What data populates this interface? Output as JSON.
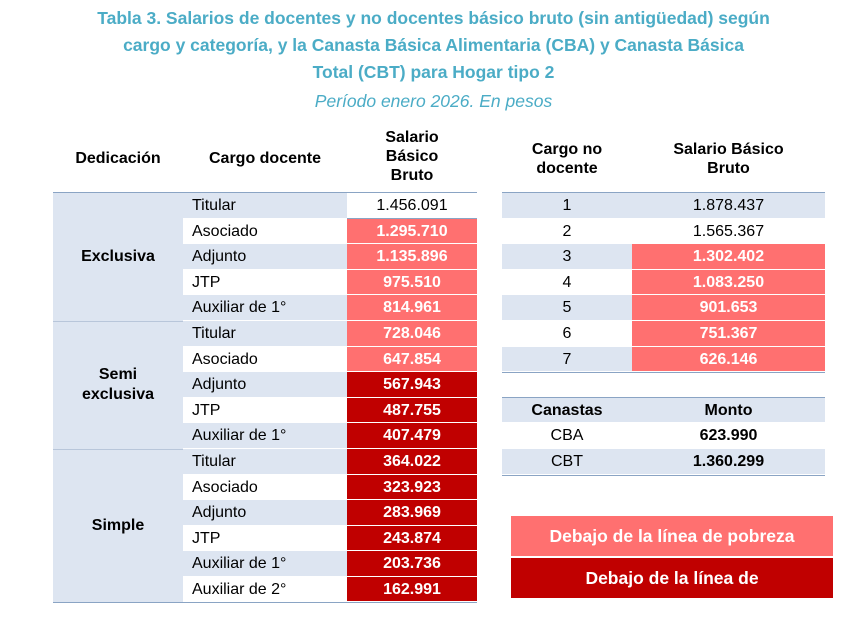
{
  "title": {
    "line1": "Tabla 3. Salarios de docentes y no docentes básico bruto (sin antigüedad) según",
    "line2": "cargo y categoría, y la Canasta Básica Alimentaria (CBA) y Canasta Básica",
    "line3": "Total (CBT) para Hogar tipo 2",
    "subtitle": "Período enero 2026. En pesos"
  },
  "docentes": {
    "headers": {
      "dedicacion": "Dedicación",
      "cargo": "Cargo docente",
      "salario_l1": "Salario",
      "salario_l2": "Básico",
      "salario_l3": "Bruto"
    },
    "groups": [
      {
        "label": "Exclusiva",
        "rows": [
          {
            "cargo": "Titular",
            "salario": "1.456.091",
            "status": "none"
          },
          {
            "cargo": "Asociado",
            "salario": "1.295.710",
            "status": "pobreza"
          },
          {
            "cargo": "Adjunto",
            "salario": "1.135.896",
            "status": "pobreza"
          },
          {
            "cargo": "JTP",
            "salario": "975.510",
            "status": "pobreza"
          },
          {
            "cargo": "Auxiliar de 1°",
            "salario": "814.961",
            "status": "pobreza"
          }
        ]
      },
      {
        "label_l1": "Semi",
        "label_l2": "exclusiva",
        "rows": [
          {
            "cargo": "Titular",
            "salario": "728.046",
            "status": "pobreza"
          },
          {
            "cargo": "Asociado",
            "salario": "647.854",
            "status": "pobreza"
          },
          {
            "cargo": "Adjunto",
            "salario": "567.943",
            "status": "indigencia"
          },
          {
            "cargo": "JTP",
            "salario": "487.755",
            "status": "indigencia"
          },
          {
            "cargo": "Auxiliar de 1°",
            "salario": "407.479",
            "status": "indigencia"
          }
        ]
      },
      {
        "label": "Simple",
        "rows": [
          {
            "cargo": "Titular",
            "salario": "364.022",
            "status": "indigencia"
          },
          {
            "cargo": "Asociado",
            "salario": "323.923",
            "status": "indigencia"
          },
          {
            "cargo": "Adjunto",
            "salario": "283.969",
            "status": "indigencia"
          },
          {
            "cargo": "JTP",
            "salario": "243.874",
            "status": "indigencia"
          },
          {
            "cargo": "Auxiliar de 1°",
            "salario": "203.736",
            "status": "indigencia"
          },
          {
            "cargo": "Auxiliar de 2°",
            "salario": "162.991",
            "status": "indigencia"
          }
        ]
      }
    ]
  },
  "no_docentes": {
    "headers": {
      "cargo_l1": "Cargo no",
      "cargo_l2": "docente",
      "salario_l1": "Salario Básico",
      "salario_l2": "Bruto"
    },
    "rows": [
      {
        "cargo": "1",
        "salario": "1.878.437",
        "status": "none"
      },
      {
        "cargo": "2",
        "salario": "1.565.367",
        "status": "none"
      },
      {
        "cargo": "3",
        "salario": "1.302.402",
        "status": "pobreza"
      },
      {
        "cargo": "4",
        "salario": "1.083.250",
        "status": "pobreza"
      },
      {
        "cargo": "5",
        "salario": "901.653",
        "status": "pobreza"
      },
      {
        "cargo": "6",
        "salario": "751.367",
        "status": "pobreza"
      },
      {
        "cargo": "7",
        "salario": "626.146",
        "status": "pobreza"
      }
    ]
  },
  "canastas": {
    "headers": {
      "canastas": "Canastas",
      "monto": "Monto"
    },
    "rows": [
      {
        "canasta": "CBA",
        "monto": "623.990"
      },
      {
        "canasta": "CBT",
        "monto": "1.360.299"
      }
    ]
  },
  "legend": {
    "pobreza": "Debajo de la línea de pobreza",
    "indigencia": "Debajo de la línea de"
  },
  "colors": {
    "title": "#4bacc6",
    "light_band": "#dde5f1",
    "pobreza": "#ff7070",
    "indigencia": "#c00000"
  }
}
